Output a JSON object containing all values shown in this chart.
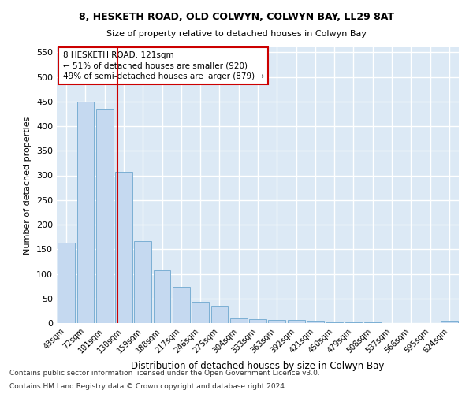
{
  "title1": "8, HESKETH ROAD, OLD COLWYN, COLWYN BAY, LL29 8AT",
  "title2": "Size of property relative to detached houses in Colwyn Bay",
  "xlabel": "Distribution of detached houses by size in Colwyn Bay",
  "ylabel": "Number of detached properties",
  "categories": [
    "43sqm",
    "72sqm",
    "101sqm",
    "130sqm",
    "159sqm",
    "188sqm",
    "217sqm",
    "246sqm",
    "275sqm",
    "304sqm",
    "333sqm",
    "363sqm",
    "392sqm",
    "421sqm",
    "450sqm",
    "479sqm",
    "508sqm",
    "537sqm",
    "566sqm",
    "595sqm",
    "624sqm"
  ],
  "values": [
    163,
    450,
    435,
    307,
    166,
    107,
    74,
    43,
    35,
    10,
    8,
    7,
    7,
    5,
    1,
    1,
    1,
    0,
    0,
    0,
    5
  ],
  "bar_color": "#c5d9f0",
  "bar_edge_color": "#7bafd4",
  "annotation_text": "8 HESKETH ROAD: 121sqm\n← 51% of detached houses are smaller (920)\n49% of semi-detached houses are larger (879) →",
  "annotation_box_color": "#ffffff",
  "annotation_box_edge": "#cc0000",
  "background_color": "#dce9f5",
  "grid_color": "#ffffff",
  "ylim": [
    0,
    560
  ],
  "yticks": [
    0,
    50,
    100,
    150,
    200,
    250,
    300,
    350,
    400,
    450,
    500,
    550
  ],
  "footer1": "Contains HM Land Registry data © Crown copyright and database right 2024.",
  "footer2": "Contains public sector information licensed under the Open Government Licence v3.0."
}
